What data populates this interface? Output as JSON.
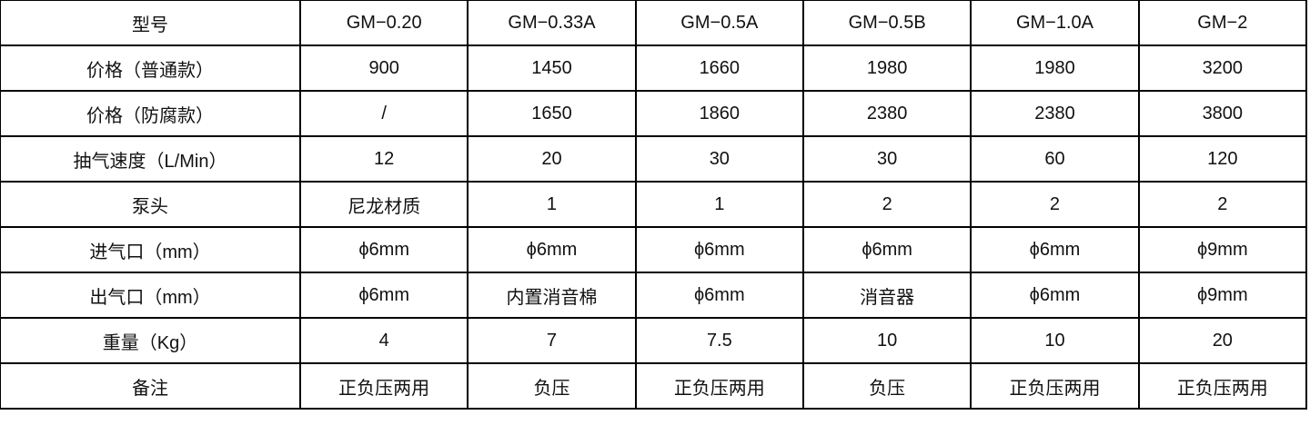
{
  "table": {
    "rows": [
      [
        "型号",
        "GM−0.20",
        "GM−0.33A",
        "GM−0.5A",
        "GM−0.5B",
        "GM−1.0A",
        "GM−2"
      ],
      [
        "价格（普通款）",
        "900",
        "1450",
        "1660",
        "1980",
        "1980",
        "3200"
      ],
      [
        "价格（防腐款）",
        "/",
        "1650",
        "1860",
        "2380",
        "2380",
        "3800"
      ],
      [
        "抽气速度（L/Min）",
        "12",
        "20",
        "30",
        "30",
        "60",
        "120"
      ],
      [
        "泵头",
        "尼龙材质",
        "1",
        "1",
        "2",
        "2",
        "2"
      ],
      [
        "进气口（mm）",
        "ϕ6mm",
        "ϕ6mm",
        "ϕ6mm",
        "ϕ6mm",
        "ϕ6mm",
        "ϕ9mm"
      ],
      [
        "出气口（mm）",
        "ϕ6mm",
        "内置消音棉",
        "ϕ6mm",
        "消音器",
        "ϕ6mm",
        "ϕ9mm"
      ],
      [
        "重量（Kg）",
        "4",
        "7",
        "7.5",
        "10",
        "10",
        "20"
      ],
      [
        "备注",
        "正负压两用",
        "负压",
        "正负压两用",
        "负压",
        "正负压两用",
        "正负压两用"
      ]
    ]
  }
}
